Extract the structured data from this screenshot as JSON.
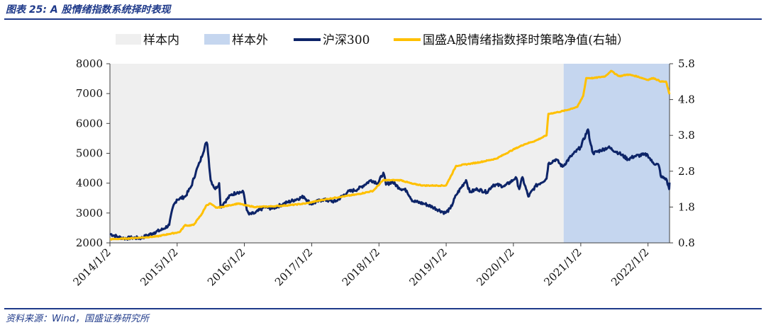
{
  "header": {
    "title": "图表 25: A 股情绪指数系统择时表现"
  },
  "footer": {
    "source": "资料来源：Wind，国盛证券研究所"
  },
  "colors": {
    "accent": "#1f3a8a",
    "in_sample": "#efefef",
    "out_sample": "#c5d6ef",
    "hs300": "#0d2468",
    "strategy": "#ffc000",
    "axis": "#404040"
  },
  "chart_data": {
    "type": "line",
    "legend": {
      "position": "top",
      "items": [
        {
          "name": "样本内",
          "kind": "patch",
          "color": "#efefef"
        },
        {
          "name": "样本外",
          "kind": "patch",
          "color": "#c5d6ef"
        },
        {
          "name": "沪深300",
          "kind": "line",
          "color": "#0d2468"
        },
        {
          "name": "国盛A股情绪指数择时策略净值(右轴）",
          "kind": "line",
          "color": "#ffc000"
        }
      ]
    },
    "x_ticks": [
      "2014/1/2",
      "2015/1/2",
      "2016/1/2",
      "2017/1/2",
      "2018/1/2",
      "2019/1/2",
      "2020/1/2",
      "2021/1/2",
      "2022/1/2"
    ],
    "x_range": [
      "2014-01-02",
      "2022-04-29"
    ],
    "regions": [
      {
        "name": "样本内",
        "from": "2014-01-02",
        "to": "2020-10-01"
      },
      {
        "name": "样本外",
        "from": "2020-10-01",
        "to": "2022-04-29"
      }
    ],
    "y_left": {
      "ylim": [
        2000,
        8000
      ],
      "ticks": [
        2000,
        3000,
        4000,
        5000,
        6000,
        7000,
        8000
      ]
    },
    "y_right": {
      "ylim": [
        0.8,
        5.8
      ],
      "ticks": [
        "0.8",
        "1.8",
        "2.8",
        "3.8",
        "4.8",
        "5.8"
      ]
    },
    "series": [
      {
        "name": "沪深300",
        "axis": "left",
        "color": "#0d2468",
        "points": [
          [
            "2014-01-02",
            2300
          ],
          [
            "2014-02-15",
            2200
          ],
          [
            "2014-03-20",
            2150
          ],
          [
            "2014-05-01",
            2170
          ],
          [
            "2014-06-20",
            2160
          ],
          [
            "2014-07-25",
            2250
          ],
          [
            "2014-09-01",
            2350
          ],
          [
            "2014-10-15",
            2450
          ],
          [
            "2014-11-20",
            2600
          ],
          [
            "2014-12-10",
            3200
          ],
          [
            "2014-12-31",
            3450
          ],
          [
            "2015-02-15",
            3550
          ],
          [
            "2015-03-20",
            3900
          ],
          [
            "2015-04-15",
            4400
          ],
          [
            "2015-05-05",
            4700
          ],
          [
            "2015-06-08",
            5350
          ],
          [
            "2015-06-15",
            5300
          ],
          [
            "2015-07-03",
            4100
          ],
          [
            "2015-07-28",
            3800
          ],
          [
            "2015-08-18",
            4000
          ],
          [
            "2015-08-26",
            3200
          ],
          [
            "2015-09-15",
            3350
          ],
          [
            "2015-10-20",
            3600
          ],
          [
            "2015-11-25",
            3700
          ],
          [
            "2015-12-28",
            3700
          ],
          [
            "2016-01-15",
            3100
          ],
          [
            "2016-01-28",
            2950
          ],
          [
            "2016-03-01",
            3000
          ],
          [
            "2016-04-20",
            3200
          ],
          [
            "2016-06-01",
            3150
          ],
          [
            "2016-08-20",
            3350
          ],
          [
            "2016-11-20",
            3550
          ],
          [
            "2016-12-28",
            3300
          ],
          [
            "2017-03-01",
            3450
          ],
          [
            "2017-05-10",
            3380
          ],
          [
            "2017-07-15",
            3700
          ],
          [
            "2017-09-10",
            3800
          ],
          [
            "2017-11-20",
            4100
          ],
          [
            "2017-12-28",
            4000
          ],
          [
            "2018-01-26",
            4350
          ],
          [
            "2018-02-09",
            3950
          ],
          [
            "2018-03-15",
            4050
          ],
          [
            "2018-04-20",
            3850
          ],
          [
            "2018-06-01",
            3750
          ],
          [
            "2018-07-05",
            3400
          ],
          [
            "2018-09-10",
            3300
          ],
          [
            "2018-10-20",
            3200
          ],
          [
            "2018-12-28",
            3000
          ],
          [
            "2019-01-25",
            3150
          ],
          [
            "2019-02-25",
            3600
          ],
          [
            "2019-04-20",
            4100
          ],
          [
            "2019-05-10",
            3700
          ],
          [
            "2019-06-20",
            3800
          ],
          [
            "2019-08-10",
            3700
          ],
          [
            "2019-09-15",
            3950
          ],
          [
            "2019-11-15",
            3900
          ],
          [
            "2019-12-31",
            4100
          ],
          [
            "2020-01-15",
            4200
          ],
          [
            "2020-02-03",
            3800
          ],
          [
            "2020-02-20",
            4200
          ],
          [
            "2020-03-23",
            3550
          ],
          [
            "2020-05-01",
            3900
          ],
          [
            "2020-06-30",
            4150
          ],
          [
            "2020-07-10",
            4650
          ],
          [
            "2020-08-20",
            4800
          ],
          [
            "2020-09-25",
            4550
          ],
          [
            "2020-11-10",
            4900
          ],
          [
            "2020-12-31",
            5200
          ],
          [
            "2021-02-10",
            5800
          ],
          [
            "2021-02-25",
            5300
          ],
          [
            "2021-03-10",
            5000
          ],
          [
            "2021-04-20",
            5100
          ],
          [
            "2021-06-01",
            5200
          ],
          [
            "2021-07-30",
            5000
          ],
          [
            "2021-09-15",
            4800
          ],
          [
            "2021-10-20",
            4900
          ],
          [
            "2021-12-10",
            4950
          ],
          [
            "2021-12-31",
            4950
          ],
          [
            "2022-01-25",
            4700
          ],
          [
            "2022-03-01",
            4600
          ],
          [
            "2022-03-15",
            4200
          ],
          [
            "2022-04-10",
            4150
          ],
          [
            "2022-04-27",
            3800
          ],
          [
            "2022-04-29",
            4020
          ]
        ]
      },
      {
        "name": "国盛A股情绪指数择时策略净值(右轴）",
        "axis": "right",
        "color": "#ffc000",
        "points": [
          [
            "2014-01-02",
            0.9
          ],
          [
            "2014-04-01",
            0.92
          ],
          [
            "2014-07-01",
            0.95
          ],
          [
            "2014-09-15",
            0.98
          ],
          [
            "2014-11-20",
            1.05
          ],
          [
            "2015-01-15",
            1.1
          ],
          [
            "2015-02-15",
            1.3
          ],
          [
            "2015-03-01",
            1.28
          ],
          [
            "2015-04-01",
            1.3
          ],
          [
            "2015-05-15",
            1.6
          ],
          [
            "2015-06-10",
            1.85
          ],
          [
            "2015-07-01",
            1.9
          ],
          [
            "2015-08-01",
            1.78
          ],
          [
            "2015-09-01",
            1.8
          ],
          [
            "2015-10-15",
            1.85
          ],
          [
            "2015-12-01",
            1.9
          ],
          [
            "2016-01-05",
            1.85
          ],
          [
            "2016-03-01",
            1.8
          ],
          [
            "2016-06-01",
            1.82
          ],
          [
            "2016-09-01",
            1.85
          ],
          [
            "2016-12-01",
            1.9
          ],
          [
            "2017-03-01",
            2.0
          ],
          [
            "2017-06-01",
            2.08
          ],
          [
            "2017-09-01",
            2.15
          ],
          [
            "2017-12-01",
            2.25
          ],
          [
            "2018-01-25",
            2.55
          ],
          [
            "2018-03-01",
            2.55
          ],
          [
            "2018-05-01",
            2.55
          ],
          [
            "2018-07-01",
            2.45
          ],
          [
            "2018-09-01",
            2.4
          ],
          [
            "2018-11-01",
            2.4
          ],
          [
            "2019-01-01",
            2.4
          ],
          [
            "2019-02-25",
            2.95
          ],
          [
            "2019-05-01",
            3.0
          ],
          [
            "2019-07-01",
            3.05
          ],
          [
            "2019-10-01",
            3.15
          ],
          [
            "2019-12-31",
            3.4
          ],
          [
            "2020-03-01",
            3.55
          ],
          [
            "2020-05-01",
            3.65
          ],
          [
            "2020-06-30",
            3.8
          ],
          [
            "2020-07-10",
            4.4
          ],
          [
            "2020-09-01",
            4.45
          ],
          [
            "2020-10-15",
            4.5
          ],
          [
            "2020-12-15",
            4.6
          ],
          [
            "2021-01-15",
            4.9
          ],
          [
            "2021-02-01",
            5.4
          ],
          [
            "2021-03-15",
            5.4
          ],
          [
            "2021-05-15",
            5.45
          ],
          [
            "2021-06-15",
            5.6
          ],
          [
            "2021-07-30",
            5.45
          ],
          [
            "2021-09-15",
            5.5
          ],
          [
            "2021-11-01",
            5.45
          ],
          [
            "2021-12-31",
            5.35
          ],
          [
            "2022-02-01",
            5.4
          ],
          [
            "2022-03-15",
            5.3
          ],
          [
            "2022-04-10",
            5.3
          ],
          [
            "2022-04-29",
            4.95
          ]
        ]
      }
    ]
  }
}
